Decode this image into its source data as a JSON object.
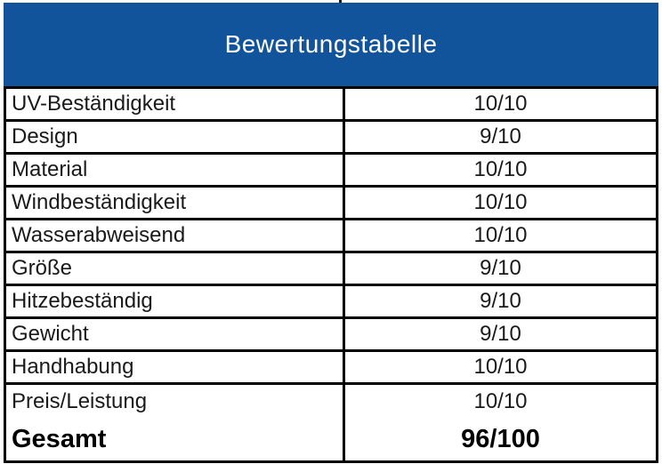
{
  "colors": {
    "header_bg": "#11549B",
    "header_text": "#FFFFFF",
    "border": "#000000"
  },
  "chart_data": {
    "type": "table",
    "title": "Bewertungstabelle",
    "rows": [
      {
        "label": "UV-Beständigkeit",
        "score": "10/10"
      },
      {
        "label": "Design",
        "score": "9/10"
      },
      {
        "label": "Material",
        "score": "10/10"
      },
      {
        "label": "Windbeständigkeit",
        "score": "10/10"
      },
      {
        "label": "Wasserabweisend",
        "score": "10/10"
      },
      {
        "label": "Größe",
        "score": "9/10"
      },
      {
        "label": "Hitzebeständig",
        "score": "9/10"
      },
      {
        "label": "Gewicht",
        "score": "9/10"
      },
      {
        "label": "Handhabung",
        "score": "10/10"
      },
      {
        "label": "Preis/Leistung",
        "score": "10/10"
      }
    ],
    "total": {
      "label": "Gesamt",
      "value": "96/100"
    }
  }
}
